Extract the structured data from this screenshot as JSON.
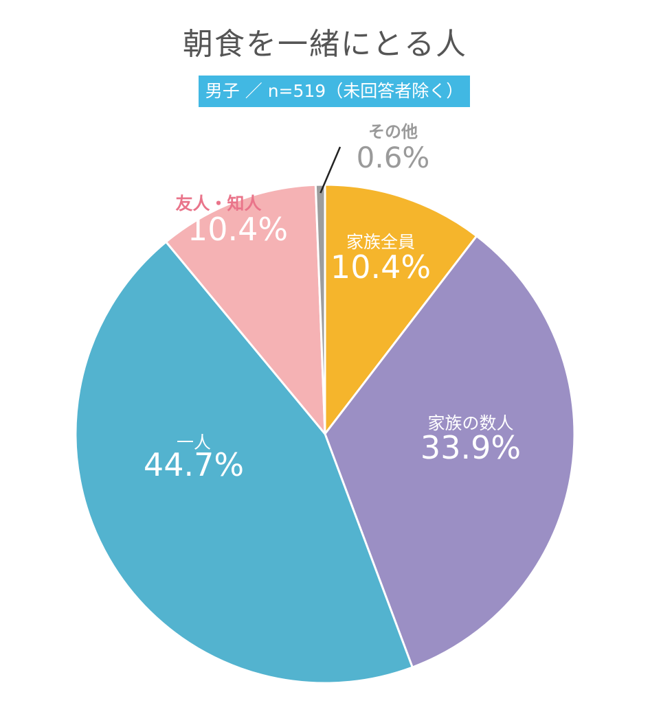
{
  "chart_data": {
    "type": "pie",
    "title": "朝食を一緒にとる人",
    "subtitle": "男子 ／ n=519（未回答者除く）",
    "slices": [
      {
        "label": "家族全員",
        "value": 10.4,
        "display": "10.4%",
        "color": "#f5b52c"
      },
      {
        "label": "家族の数人",
        "value": 33.9,
        "display": "33.9%",
        "color": "#9b8fc4"
      },
      {
        "label": "一人",
        "value": 44.7,
        "display": "44.7%",
        "color": "#53b3cf"
      },
      {
        "label": "友人・知人",
        "value": 10.4,
        "display": "10.4%",
        "color": "#f5b2b4"
      },
      {
        "label": "その他",
        "value": 0.6,
        "display": "0.6%",
        "color": "#9d9d9d"
      }
    ],
    "start_angle": "12 o'clock",
    "direction": "clockwise",
    "legend": "none"
  }
}
